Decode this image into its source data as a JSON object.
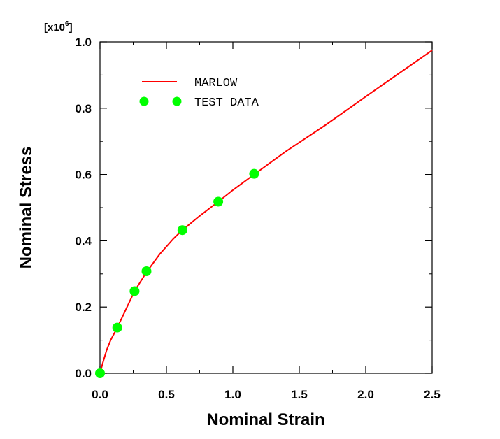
{
  "chart_data": {
    "type": "line",
    "title": "",
    "xlabel": "Nominal Strain",
    "ylabel": "Nominal Stress",
    "y_multiplier": {
      "base": "[x10",
      "exp": "6",
      "close": "]"
    },
    "xlim": [
      0,
      2.5
    ],
    "ylim": [
      0,
      1.0
    ],
    "xticks": [
      0.0,
      0.5,
      1.0,
      1.5,
      2.0,
      2.5
    ],
    "yticks": [
      0.0,
      0.2,
      0.4,
      0.6,
      0.8,
      1.0
    ],
    "xtick_labels": [
      "0.0",
      "0.5",
      "1.0",
      "1.5",
      "2.0",
      "2.5"
    ],
    "ytick_labels": [
      "0.0",
      "0.2",
      "0.4",
      "0.6",
      "0.8",
      "1.0"
    ],
    "grid": false,
    "legend_position": "top-left",
    "series": [
      {
        "name": "MARLOW",
        "kind": "line",
        "color": "#ff0000",
        "x": [
          0.0,
          0.02,
          0.05,
          0.08,
          0.13,
          0.18,
          0.26,
          0.35,
          0.45,
          0.55,
          0.62,
          0.75,
          0.89,
          1.0,
          1.16,
          1.4,
          1.7,
          2.0,
          2.25,
          2.5
        ],
        "y": [
          0.0,
          0.03,
          0.07,
          0.1,
          0.138,
          0.18,
          0.248,
          0.305,
          0.36,
          0.405,
          0.432,
          0.475,
          0.518,
          0.553,
          0.6,
          0.67,
          0.75,
          0.835,
          0.905,
          0.975
        ]
      },
      {
        "name": "TEST DATA",
        "kind": "scatter",
        "color": "#00ff00",
        "x": [
          0.0,
          0.13,
          0.26,
          0.35,
          0.62,
          0.89,
          1.16
        ],
        "y": [
          0.0,
          0.138,
          0.248,
          0.308,
          0.432,
          0.518,
          0.602
        ]
      }
    ]
  }
}
